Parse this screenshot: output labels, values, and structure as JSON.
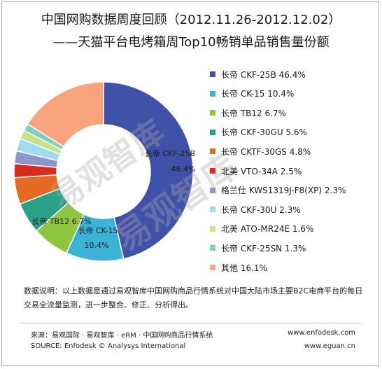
{
  "header": {
    "title_line1": "中国网购数据周度回顾（2012.11.26-2012.12.02）",
    "title_line2": "——天猫平台电烤箱周Top10畅销单品销售量份额"
  },
  "chart_data": {
    "type": "pie",
    "donut": true,
    "title": "中国网购数据周度回顾（2012.11.26-2012.12.02）——天猫平台电烤箱周Top10畅销单品销售量份额",
    "legend_position": "right",
    "slices": [
      {
        "label": "长帝 CKF-25B",
        "value": 46.4,
        "color": "#3f51a8"
      },
      {
        "label": "长帝 CK-15",
        "value": 10.4,
        "color": "#3bb3d6"
      },
      {
        "label": "长帝 TB12",
        "value": 6.7,
        "color": "#8ec63f"
      },
      {
        "label": "长帝 CKF-30GU",
        "value": 5.6,
        "color": "#29a088"
      },
      {
        "label": "长帝 CKTF-30GS",
        "value": 4.8,
        "color": "#e56b24"
      },
      {
        "label": "北美 VTO-34A",
        "value": 2.5,
        "color": "#d92b22"
      },
      {
        "label": "格兰仕 KWS1319J-F8(XP)",
        "value": 2.3,
        "color": "#8d96cc"
      },
      {
        "label": "长帝 CKF-30U",
        "value": 2.3,
        "color": "#9ddcf2"
      },
      {
        "label": "北美 ATO-MR24E",
        "value": 1.6,
        "color": "#c2e38a"
      },
      {
        "label": "长帝 CKF-25SN",
        "value": 1.3,
        "color": "#7fd0bf"
      },
      {
        "label": "其他",
        "value": 16.1,
        "color": "#f9a47e"
      }
    ],
    "legend_texts": [
      "长帝 CKF-25B 46.4%",
      "长帝 CK-15 10.4%",
      "长帝 TB12 6.7%",
      "长帝 CKF-30GU 5.6%",
      "长帝 CKTF-30GS 4.8%",
      "北美 VTO-34A 2.5%",
      "格兰仕 KWS1319J-F8(XP) 2.3%",
      "长帝 CKF-30U 2.3%",
      "北美 ATO-MR24E 1.6%",
      "长帝 CKF-25SN 1.3%",
      "其他 16.1%"
    ],
    "data_labels": {
      "CKF-25B_line1": "长帝 CKF-25B",
      "CKF-25B_line2": "46.4%",
      "TB12": "长帝 TB12 6.7%",
      "CK-15_line1": "长帝 CK-15",
      "CK-15_line2": "10.4%"
    }
  },
  "note": {
    "text": "数据说明：以上数据是通过易观智库中国网购商品行情系统对中国大陆市场主要B2C电商平台的每日交易全流量监测，进一步整合、修正、分析得出。"
  },
  "footer": {
    "source_cn": "来源：易观国际 · 易观智库 · eRM · 中国网购商品行情系统",
    "source_en": "SOURCE: Enfodesk © Analysys International",
    "url1": "www.enfodesk.com",
    "url2": "www.eguan.cn"
  },
  "watermark": {
    "text_a": "易观智库",
    "text_b": "易观智库"
  }
}
